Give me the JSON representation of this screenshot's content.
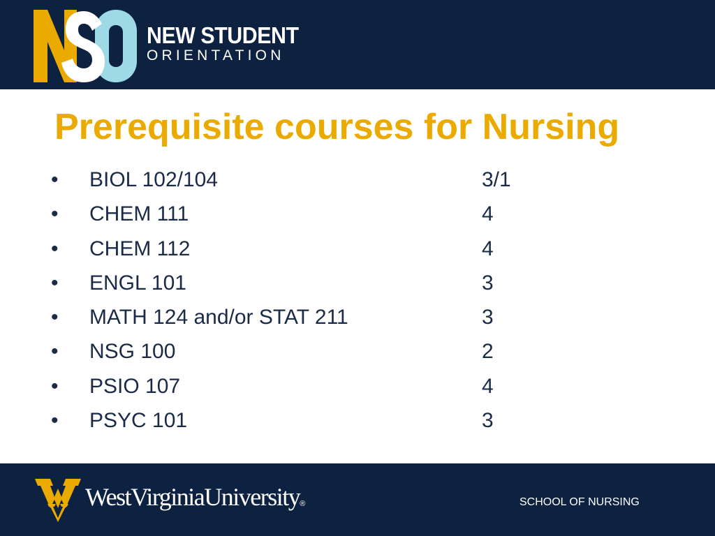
{
  "header": {
    "logo_monogram": "NSO",
    "logo_line1": "NEW STUDENT",
    "logo_line2": "ORIENTATION"
  },
  "slide": {
    "title": "Prerequisite courses for Nursing",
    "bullet_symbol": "•",
    "courses": [
      {
        "name": "BIOL 102/104",
        "credits": "3/1"
      },
      {
        "name": "CHEM 111",
        "credits": "4"
      },
      {
        "name": "CHEM 112",
        "credits": "4"
      },
      {
        "name": "ENGL 101",
        "credits": "3"
      },
      {
        "name": "MATH 124 and/or STAT 211",
        "credits": "3"
      },
      {
        "name": "NSG 100",
        "credits": "2"
      },
      {
        "name": "PSIO 107",
        "credits": "4"
      },
      {
        "name": "PSYC 101",
        "credits": "3"
      }
    ]
  },
  "footer": {
    "university_wordmark": "WestVirginiaUniversity",
    "registered_mark": "®",
    "school_name": "SCHOOL OF NURSING"
  },
  "colors": {
    "navy": "#0d2240",
    "gold": "#eaaa00",
    "light_blue": "#9ddae6",
    "text_dark": "#1a2b47"
  }
}
